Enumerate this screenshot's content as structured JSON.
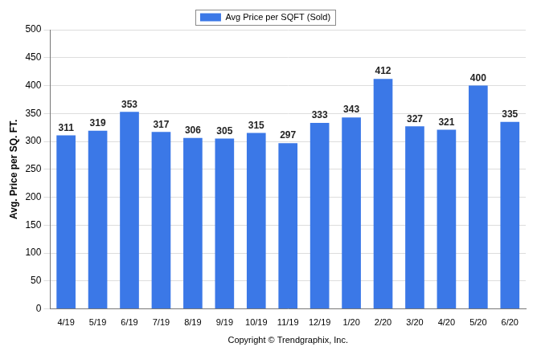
{
  "chart_data": {
    "type": "bar",
    "categories": [
      "4/19",
      "5/19",
      "6/19",
      "7/19",
      "8/19",
      "9/19",
      "10/19",
      "11/19",
      "12/19",
      "1/20",
      "2/20",
      "3/20",
      "4/20",
      "5/20",
      "6/20"
    ],
    "series": [
      {
        "name": "Avg Price per SQFT (Sold)",
        "color": "#3b78e7",
        "values": [
          311,
          319,
          353,
          317,
          306,
          305,
          315,
          297,
          333,
          343,
          412,
          327,
          321,
          400,
          335
        ]
      }
    ],
    "ylabel": "Avg. Price per SQ. FT.",
    "annotations": [
      "Copyright © Trendgraphix, Inc."
    ],
    "ylim": [
      0,
      500
    ],
    "yticks": [
      0,
      50,
      100,
      150,
      200,
      250,
      300,
      350,
      400,
      450,
      500
    ],
    "grid": true,
    "legend": "top",
    "data_labels": true
  }
}
